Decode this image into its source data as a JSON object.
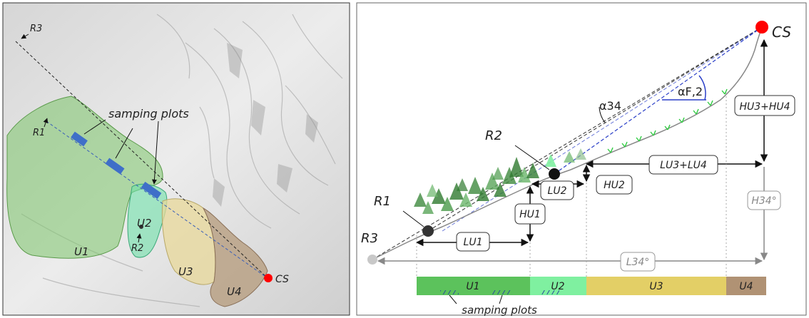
{
  "map": {
    "labels": {
      "r3": "R3",
      "r1": "R1",
      "r2": "R2",
      "u1": "U1",
      "u2": "U2",
      "u3": "U3",
      "u4": "U4",
      "cs": "CS",
      "sampling_plots": "samping plots"
    },
    "colors": {
      "u1": "#7cc46a",
      "u2": "#6ee0a8",
      "u3": "#e8d89a",
      "u4": "#b49a7a",
      "plot": "#3f6fc8",
      "cs": "#ff0000"
    }
  },
  "profile": {
    "labels": {
      "cs": "CS",
      "r1": "R1",
      "r2": "R2",
      "r3": "R3",
      "alpha34": "α34",
      "alphaF2": "αF,2",
      "h_u3_u4": "HU3+HU4",
      "l_u3_u4": "LU3+LU4",
      "h_u2": "HU2",
      "l_u2": "LU2",
      "h_u1": "HU1",
      "l_u1": "LU1",
      "h_34": "H34°",
      "l_34": "L34°"
    },
    "bar": {
      "segments": [
        {
          "label": "U1",
          "color": "#5cc25c"
        },
        {
          "label": "U2",
          "color": "#7ff0a0"
        },
        {
          "label": "U3",
          "color": "#e3cf66"
        },
        {
          "label": "U4",
          "color": "#b09274"
        }
      ],
      "caption": "samping plots"
    }
  }
}
